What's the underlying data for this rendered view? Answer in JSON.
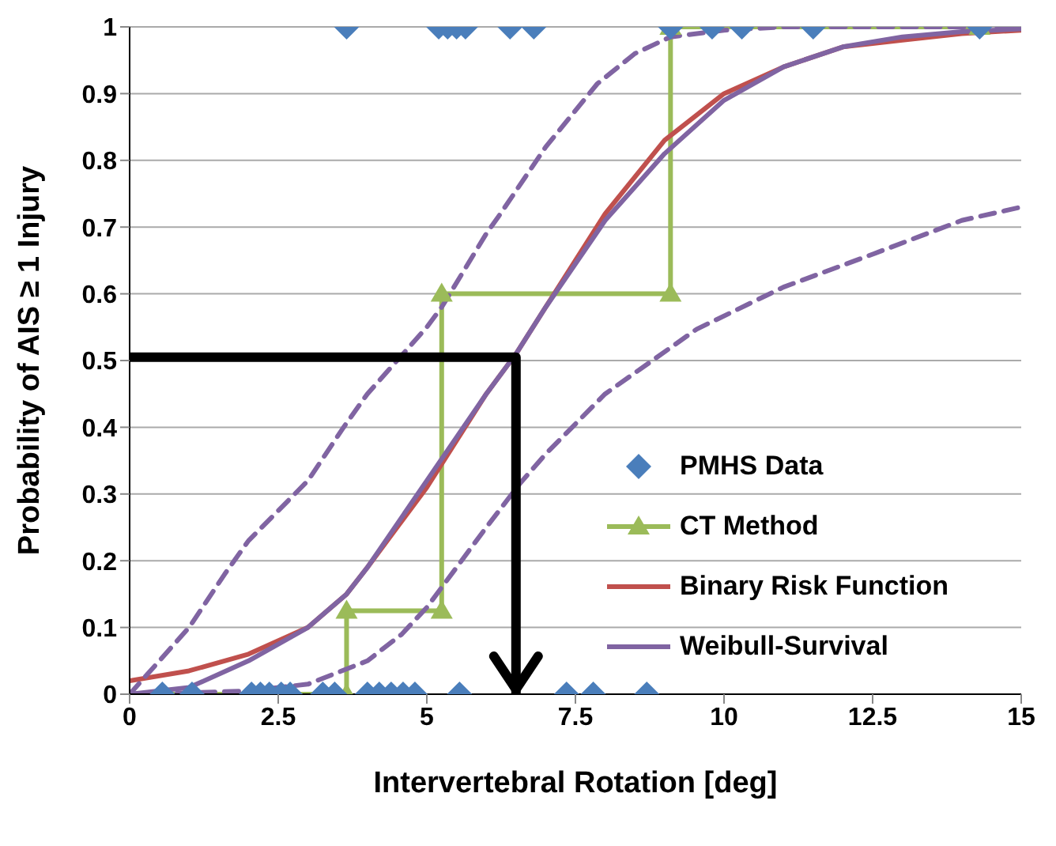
{
  "chart_data": {
    "type": "line",
    "xlabel": "Intervertebral Rotation [deg]",
    "ylabel": "Probability of AIS ≥ 1 Injury",
    "xlim": [
      0,
      15
    ],
    "ylim": [
      0,
      1
    ],
    "xticks": [
      0,
      2.5,
      5,
      7.5,
      10,
      12.5,
      15
    ],
    "yticks": [
      0,
      0.1,
      0.2,
      0.3,
      0.4,
      0.5,
      0.6,
      0.7,
      0.8,
      0.9,
      1
    ],
    "grid": "y",
    "legend": "bottom right",
    "series": [
      {
        "name": "PMHS Data",
        "type": "scatter",
        "marker": "diamond",
        "color": "#4a7ebb",
        "x": [
          3.65,
          5.2,
          5.35,
          5.5,
          5.65,
          6.4,
          6.8,
          9.1,
          9.8,
          10.3,
          11.5,
          14.3,
          0.55,
          1.05,
          2.05,
          2.2,
          2.35,
          2.55,
          2.7,
          3.25,
          3.45,
          4.0,
          4.2,
          4.4,
          4.6,
          4.8,
          5.55,
          7.35,
          7.8,
          8.7
        ],
        "values": [
          1,
          1,
          1,
          1,
          1,
          1,
          1,
          1,
          1,
          1,
          1,
          1,
          0,
          0,
          0,
          0,
          0,
          0,
          0,
          0,
          0,
          0,
          0,
          0,
          0,
          0,
          0,
          0,
          0,
          0
        ]
      },
      {
        "name": "CT Method",
        "marker": "triangle",
        "color": "#9bbb59",
        "x": [
          0.55,
          3.65,
          3.65,
          5.25,
          5.25,
          9.1,
          9.1,
          14.3
        ],
        "values": [
          0,
          0,
          0.125,
          0.125,
          0.6,
          0.6,
          1,
          1
        ]
      },
      {
        "name": "Binary Risk Function",
        "marker": "none",
        "color": "#c0504d",
        "x": [
          0,
          1,
          2,
          3,
          3.65,
          4,
          5,
          6,
          6.5,
          7,
          8,
          9,
          10,
          11,
          12,
          13,
          14,
          15
        ],
        "values": [
          0.02,
          0.035,
          0.06,
          0.1,
          0.15,
          0.19,
          0.31,
          0.45,
          0.51,
          0.58,
          0.72,
          0.83,
          0.9,
          0.94,
          0.97,
          0.98,
          0.99,
          0.995
        ]
      },
      {
        "name": "Weibull-Survival",
        "marker": "none",
        "color": "#8064a2",
        "x": [
          0,
          1,
          2,
          3,
          3.65,
          4,
          5,
          6,
          6.5,
          7,
          8,
          9,
          10,
          11,
          12,
          13,
          14,
          15
        ],
        "values": [
          0,
          0.01,
          0.05,
          0.1,
          0.15,
          0.19,
          0.32,
          0.45,
          0.51,
          0.58,
          0.71,
          0.81,
          0.89,
          0.94,
          0.97,
          0.985,
          0.993,
          0.997
        ]
      },
      {
        "marker": "none",
        "line_style": "dashed",
        "color": "#8064a2",
        "x": [
          0,
          0.5,
          1,
          1.6,
          2,
          3,
          3.6,
          4,
          5,
          5.25,
          6,
          6.2,
          7,
          7.87,
          8.5,
          9.1,
          10,
          11,
          15
        ],
        "values": [
          0,
          0.05,
          0.1,
          0.18,
          0.23,
          0.32,
          0.4,
          0.45,
          0.55,
          0.58,
          0.69,
          0.715,
          0.82,
          0.915,
          0.96,
          0.985,
          0.995,
          1,
          1
        ]
      },
      {
        "marker": "none",
        "line_style": "dashed",
        "color": "#8064a2",
        "x": [
          0,
          1,
          2,
          3,
          4,
          4.58,
          5,
          5.5,
          6,
          6.56,
          7,
          8,
          9.54,
          11,
          12.52,
          14,
          15
        ],
        "values": [
          0,
          0.002,
          0.005,
          0.015,
          0.05,
          0.09,
          0.13,
          0.19,
          0.25,
          0.315,
          0.36,
          0.45,
          0.547,
          0.61,
          0.66,
          0.71,
          0.73
        ]
      },
      {
        "marker": "none",
        "color": "#000000",
        "x": [
          0,
          6.5,
          6.5
        ],
        "values": [
          0.505,
          0.505,
          0
        ]
      }
    ]
  }
}
